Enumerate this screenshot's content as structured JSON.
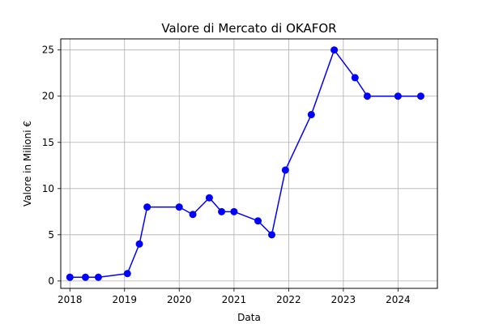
{
  "chart_data": {
    "type": "line",
    "title": "Valore di Mercato di OKAFOR",
    "xlabel": "Data",
    "ylabel": "Valore in Milioni €",
    "x_ticks": [
      "2018",
      "2019",
      "2020",
      "2021",
      "2022",
      "2023",
      "2024"
    ],
    "y_ticks": [
      0,
      5,
      10,
      15,
      20,
      25
    ],
    "xlim": [
      "2017-11-01",
      "2024-09-20"
    ],
    "ylim": [
      -0.8,
      26.2
    ],
    "grid": true,
    "series": [
      {
        "name": "",
        "color": "#0000ff",
        "marker": "circle",
        "points": [
          {
            "x": "2018-01-01",
            "y": 0.4
          },
          {
            "x": "2018-04-15",
            "y": 0.4
          },
          {
            "x": "2018-07-10",
            "y": 0.4
          },
          {
            "x": "2019-01-20",
            "y": 0.8
          },
          {
            "x": "2019-04-10",
            "y": 4.0
          },
          {
            "x": "2019-06-01",
            "y": 8.0
          },
          {
            "x": "2020-01-01",
            "y": 8.0
          },
          {
            "x": "2020-04-01",
            "y": 7.2
          },
          {
            "x": "2020-07-20",
            "y": 9.0
          },
          {
            "x": "2020-10-10",
            "y": 7.5
          },
          {
            "x": "2021-01-01",
            "y": 7.5
          },
          {
            "x": "2021-06-10",
            "y": 6.5
          },
          {
            "x": "2021-09-10",
            "y": 5.0
          },
          {
            "x": "2021-12-10",
            "y": 12.0
          },
          {
            "x": "2022-06-01",
            "y": 18.0
          },
          {
            "x": "2022-11-01",
            "y": 25.0
          },
          {
            "x": "2023-03-20",
            "y": 22.0
          },
          {
            "x": "2023-06-10",
            "y": 20.0
          },
          {
            "x": "2024-01-01",
            "y": 20.0
          },
          {
            "x": "2024-06-01",
            "y": 20.0
          }
        ]
      }
    ]
  }
}
